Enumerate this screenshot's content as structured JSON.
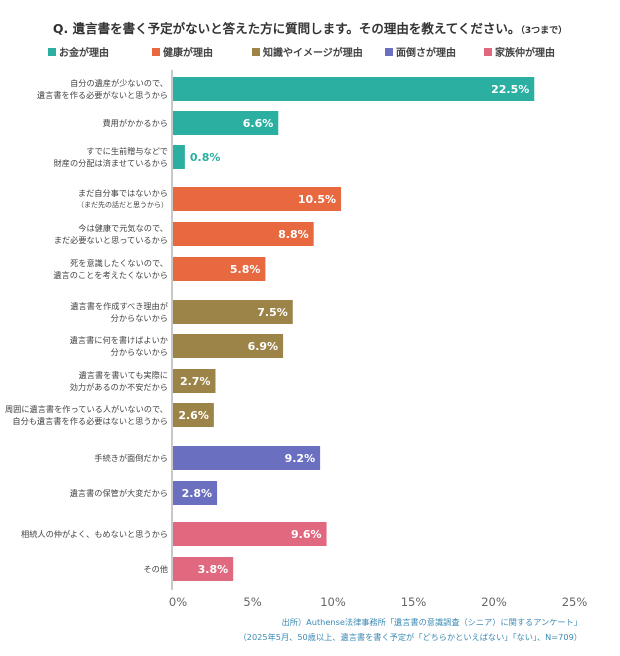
{
  "chart_data": {
    "type": "bar",
    "orientation": "horizontal",
    "title": "Q. 遺言書を書く予定がないと答えた方に質問します。その理由を教えてください。",
    "title_note": "（3つまで）",
    "legend": [
      {
        "name": "お金が理由",
        "color": "#2bafa0"
      },
      {
        "name": "健康が理由",
        "color": "#e8683f"
      },
      {
        "name": "知識やイメージが理由",
        "color": "#9c8448"
      },
      {
        "name": "面倒さが理由",
        "color": "#6a6fc0"
      },
      {
        "name": "家族仲が理由",
        "color": "#e0687f"
      }
    ],
    "legend_position": "top",
    "categories": [
      {
        "lines": [
          "自分の遺産が少ないので、",
          "遺言書を作る必要がないと思うから"
        ],
        "value": 22.5,
        "group": 0
      },
      {
        "lines": [
          "費用がかかるから"
        ],
        "value": 6.6,
        "group": 0
      },
      {
        "lines": [
          "すでに生前贈与などで",
          "財産の分配は済ませているから"
        ],
        "value": 0.8,
        "group": 0
      },
      {
        "lines": [
          "まだ自分事ではないから",
          "（まだ先の話だと思うから）"
        ],
        "value": 10.5,
        "group": 1
      },
      {
        "lines": [
          "今は健康で元気なので、",
          "まだ必要ないと思っているから"
        ],
        "value": 8.8,
        "group": 1
      },
      {
        "lines": [
          "死を意識したくないので、",
          "遺言のことを考えたくないから"
        ],
        "value": 5.8,
        "group": 1
      },
      {
        "lines": [
          "遺言書を作成すべき理由が",
          "分からないから"
        ],
        "value": 7.5,
        "group": 2
      },
      {
        "lines": [
          "遺言書に何を書けばよいか",
          "分からないから"
        ],
        "value": 6.9,
        "group": 2
      },
      {
        "lines": [
          "遺言書を書いても実際に",
          "効力があるのか不安だから"
        ],
        "value": 2.7,
        "group": 2
      },
      {
        "lines": [
          "周囲に遺言書を作っている人がいないので、",
          "自分も遺言書を作る必要はないと思うから"
        ],
        "value": 2.6,
        "group": 2
      },
      {
        "lines": [
          "手続きが面倒だから"
        ],
        "value": 9.2,
        "group": 3
      },
      {
        "lines": [
          "遺言書の保管が大変だから"
        ],
        "value": 2.8,
        "group": 3
      },
      {
        "lines": [
          "相続人の仲がよく、もめないと思うから"
        ],
        "value": 9.6,
        "group": 4
      },
      {
        "lines": [
          "その他"
        ],
        "value": 3.8,
        "group": 4
      }
    ],
    "xlim": [
      0,
      25
    ],
    "xticks": [
      "0%",
      "5%",
      "10%",
      "15%",
      "20%",
      "25%"
    ],
    "grid": false
  },
  "source": {
    "line1": "出所）Authense法律事務所「遺言書の意識調査（シニア）に関するアンケート」",
    "line2": "（2025年5月、50歳以上、遺言書を書く予定が「どちらかといえばない」「ない」、N=709）"
  }
}
